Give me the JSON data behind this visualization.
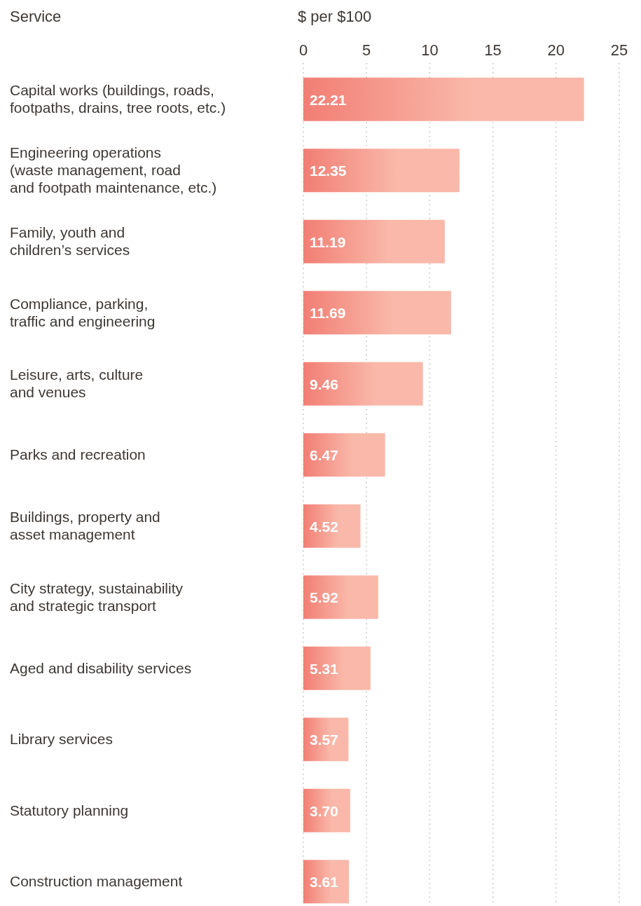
{
  "chart_data": {
    "type": "bar",
    "orientation": "horizontal",
    "ylabel": "Service",
    "xlabel": "$ per $100",
    "categories": [
      "Capital works (buildings, roads,\nfootpaths, drains, tree roots, etc.)",
      "Engineering operations\n(waste management, road\nand footpath maintenance, etc.)",
      "Family, youth and\nchildren’s services",
      "Compliance, parking,\ntraffic and engineering",
      "Leisure, arts, culture\nand venues",
      "Parks and recreation",
      "Buildings, property and\nasset management",
      "City strategy, sustainability\nand strategic transport",
      "Aged and disability services",
      "Library services",
      "Statutory planning",
      "Construction management"
    ],
    "values": [
      22.21,
      12.35,
      11.19,
      11.69,
      9.46,
      6.47,
      4.52,
      5.92,
      5.31,
      3.57,
      3.7,
      3.61
    ],
    "value_labels": [
      "22.21",
      "12.35",
      "11.19",
      "11.69",
      "9.46",
      "6.47",
      "4.52",
      "5.92",
      "5.31",
      "3.57",
      "3.70",
      "3.61"
    ],
    "color": "#f9b8a9",
    "xlim": [
      0,
      25
    ],
    "xticks": [
      0,
      5,
      10,
      15,
      20,
      25
    ],
    "grid": "x"
  }
}
